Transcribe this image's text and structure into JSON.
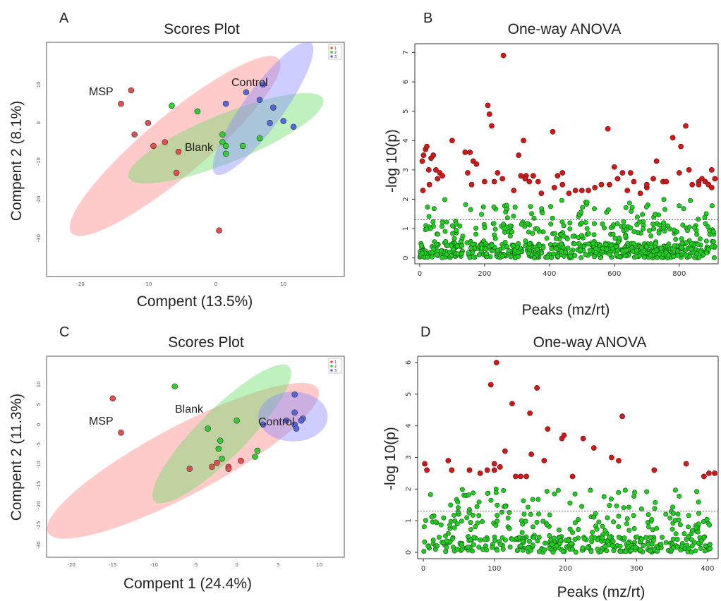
{
  "chart_data": [
    {
      "panel": "A",
      "type": "scatter",
      "title": "Scores Plot",
      "xlabel": "Compent (13.5%)",
      "ylabel": "Compent 2 (8.1%)",
      "xlim": [
        -25,
        19
      ],
      "ylim": [
        -40,
        21
      ],
      "xticks": [
        "-20",
        "-10",
        "0",
        "10"
      ],
      "yticks": [
        "-30",
        "-20",
        "-10",
        "0",
        "10"
      ],
      "legend": {
        "position": "top-right",
        "entries": [
          "1",
          "2",
          "3"
        ]
      },
      "series": [
        {
          "name": "MSP",
          "color": "#e0504f",
          "x": [
            -12.5,
            -14,
            -12,
            -10,
            -7.5,
            -9.2,
            -5.5,
            -5.8,
            0.5
          ],
          "y": [
            8.5,
            5,
            -3,
            0,
            -5,
            -6,
            -7.5,
            -13,
            -28
          ]
        },
        {
          "name": "Blank",
          "color": "#33cc33",
          "x": [
            -6.5,
            -2.7,
            1,
            1,
            1.5,
            4,
            6.5,
            1.5
          ],
          "y": [
            4.5,
            3,
            -3,
            -5,
            -6,
            -6,
            -4,
            -8
          ]
        },
        {
          "name": "Control",
          "color": "#5566dd",
          "x": [
            7,
            4.5,
            6.5,
            8.5,
            10,
            11.5,
            8,
            1.5
          ],
          "y": [
            10,
            8,
            6,
            4,
            0.5,
            -1,
            0,
            5
          ]
        }
      ],
      "ellipses": [
        {
          "group": "MSP",
          "color": "#ff8080",
          "cx": -6,
          "cy": -6,
          "rx": 20,
          "ry": 7.8,
          "angle": -40
        },
        {
          "group": "Blank",
          "color": "#66dd66",
          "cx": 1.5,
          "cy": -4,
          "rx": 15.5,
          "ry": 6.3,
          "angle": -22
        },
        {
          "group": "Control",
          "color": "#8888ff",
          "cx": 7,
          "cy": 3.8,
          "rx": 12,
          "ry": 5.1,
          "angle": -54
        }
      ],
      "group_labels": [
        "MSP",
        "Blank",
        "Control"
      ]
    },
    {
      "panel": "B",
      "type": "scatter",
      "title": "One-way ANOVA",
      "xlabel": "Peaks (mz/rt)",
      "ylabel": "-log 10(p)",
      "xlim": [
        -15,
        920
      ],
      "ylim": [
        -0.2,
        7.3
      ],
      "xticks": [
        "0",
        "200",
        "400",
        "600",
        "800"
      ],
      "yticks": [
        "0",
        "1",
        "2",
        "3",
        "4",
        "5",
        "6",
        "7"
      ],
      "threshold": 1.3,
      "significant": {
        "color": "#cc1a1a",
        "x": [
          8,
          12,
          18,
          22,
          28,
          35,
          42,
          50,
          55,
          62,
          100,
          140,
          148,
          155,
          165,
          175,
          210,
          215,
          222,
          230,
          240,
          255,
          258,
          290,
          305,
          312,
          320,
          328,
          338,
          350,
          365,
          375,
          410,
          415,
          425,
          440,
          460,
          480,
          500,
          520,
          540,
          580,
          585,
          600,
          610,
          625,
          640,
          650,
          660,
          680,
          700,
          720,
          730,
          750,
          760,
          780,
          800,
          805,
          820,
          840,
          860,
          870,
          880,
          890,
          900,
          910,
          10,
          30,
          70,
          160,
          200,
          325,
          440,
          560,
          700,
          830,
          860,
          900
        ],
        "y": [
          3.3,
          3.5,
          3.7,
          3.8,
          3.0,
          3.4,
          3.5,
          3.0,
          2.7,
          2.9,
          4.0,
          3.6,
          2.9,
          3.6,
          3.3,
          3.2,
          5.2,
          4.9,
          4.5,
          2.6,
          2.9,
          2.7,
          6.9,
          2.3,
          3.5,
          2.8,
          4.0,
          2.8,
          2.6,
          2.8,
          2.6,
          2.2,
          4.3,
          2.4,
          2.8,
          2.9,
          2.2,
          2.3,
          2.3,
          2.3,
          2.4,
          4.4,
          2.5,
          3.1,
          2.7,
          2.9,
          2.3,
          2.9,
          2.6,
          2.2,
          2.4,
          2.7,
          3.3,
          2.6,
          2.6,
          4.1,
          2.9,
          3.8,
          4.5,
          2.5,
          2.6,
          2.7,
          2.6,
          2.5,
          3.0,
          2.7,
          2.3,
          2.5,
          2.8,
          2.5,
          2.6,
          2.7,
          2.5,
          2.5,
          2.5,
          3.0,
          2.5,
          2.4
        ]
      }
    },
    {
      "panel": "C",
      "type": "scatter",
      "title": "Scores Plot",
      "xlabel": "Compent 1 (24.4%)",
      "ylabel": "Compent 2 (11.3%)",
      "xlim": [
        -23,
        13
      ],
      "ylim": [
        -33,
        17
      ],
      "xticks": [
        "-20",
        "-15",
        "-10",
        "-5",
        "0",
        "5",
        "10"
      ],
      "yticks": [
        "-30",
        "-25",
        "-20",
        "-15",
        "-10",
        "-5",
        "0",
        "5",
        "10"
      ],
      "legend": {
        "position": "top-right",
        "entries": [
          "1",
          "2",
          "3"
        ]
      },
      "series": [
        {
          "name": "MSP",
          "color": "#e0504f",
          "x": [
            -15,
            -14,
            -5.7,
            -3,
            -2.4,
            -1,
            -1,
            0.5
          ],
          "y": [
            6.5,
            -2,
            -11,
            -10.5,
            -9.5,
            -10.5,
            -11,
            -9
          ]
        },
        {
          "name": "Blank",
          "color": "#33cc33",
          "x": [
            -7.5,
            -3.5,
            0,
            -2,
            -2.2,
            -1.8,
            2.5,
            2.2
          ],
          "y": [
            9.5,
            -1,
            1,
            -4,
            -6,
            -8.5,
            -6.5,
            -8
          ]
        },
        {
          "name": "Control",
          "color": "#5566dd",
          "x": [
            7,
            7,
            8,
            7.8,
            6,
            7,
            7.2,
            3.2
          ],
          "y": [
            7.5,
            3,
            1.5,
            1,
            1,
            0,
            -1,
            0
          ]
        }
      ],
      "ellipses": [
        {
          "group": "MSP",
          "color": "#ff8080",
          "cx": -6.5,
          "cy": -9,
          "rx": 18.5,
          "ry": 8.5,
          "angle": -28
        },
        {
          "group": "Blank",
          "color": "#66dd66",
          "cx": -1.8,
          "cy": -2.3,
          "rx": 11.5,
          "ry": 6.0,
          "angle": -45
        },
        {
          "group": "Control",
          "color": "#8888ff",
          "cx": 6.8,
          "cy": 2.0,
          "rx": 4.2,
          "ry": 6.2,
          "angle": 0
        }
      ],
      "group_labels": [
        "MSP",
        "Blank",
        "Control"
      ]
    },
    {
      "panel": "D",
      "type": "scatter",
      "title": "One-way ANOVA",
      "xlabel": "Peaks (mz/rt)",
      "ylabel": "-log 10(p)",
      "xlim": [
        -8,
        415
      ],
      "ylim": [
        -0.2,
        6.2
      ],
      "xticks": [
        "0",
        "100",
        "200",
        "300",
        "400"
      ],
      "yticks": [
        "0",
        "1",
        "2",
        "3",
        "4",
        "5",
        "6"
      ],
      "threshold": 1.3,
      "significant": {
        "color": "#cc1a1a",
        "x": [
          2,
          5,
          35,
          40,
          80,
          90,
          95,
          100,
          103,
          108,
          115,
          125,
          130,
          145,
          150,
          152,
          160,
          170,
          175,
          195,
          198,
          210,
          225,
          240,
          265,
          275,
          280,
          325,
          370,
          395,
          402,
          410,
          65,
          100,
          137
        ],
        "y": [
          2.8,
          2.6,
          2.9,
          2.6,
          2.5,
          2.6,
          5.3,
          2.8,
          6.0,
          2.7,
          3.2,
          4.7,
          2.4,
          2.4,
          4.4,
          3.1,
          5.2,
          2.9,
          3.9,
          3.6,
          3.7,
          2.4,
          3.6,
          3.3,
          3.0,
          2.9,
          4.3,
          2.6,
          2.8,
          2.4,
          2.5,
          2.5,
          2.6,
          2.6,
          2.4
        ]
      }
    }
  ]
}
